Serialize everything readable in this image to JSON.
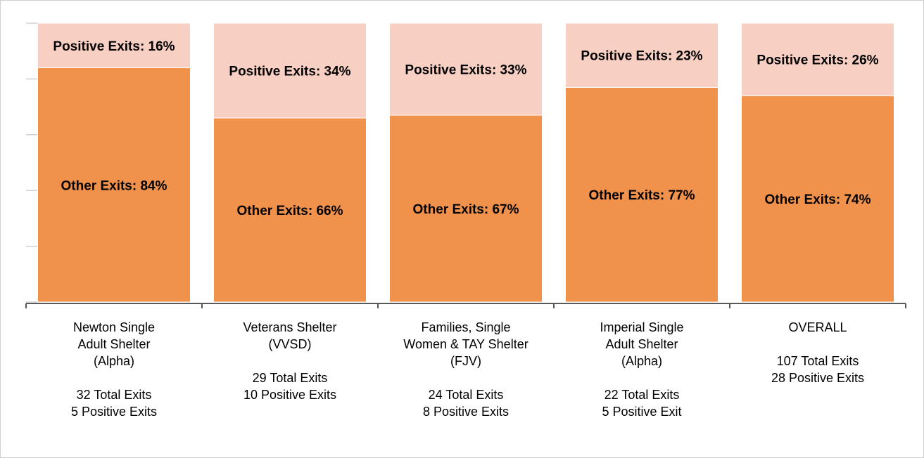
{
  "chart_data": {
    "type": "stacked_bar",
    "categories": [
      [
        "Newton Single",
        "Adult Shelter",
        "(Alpha)"
      ],
      [
        "Veterans Shelter",
        "(VVSD)"
      ],
      [
        "Families, Single",
        "Women & TAY Shelter",
        "(FJV)"
      ],
      [
        "Imperial Single",
        "Adult Shelter",
        "(Alpha)"
      ],
      [
        "OVERALL"
      ]
    ],
    "category_notes": [
      [
        "32 Total Exits",
        "5 Positive Exits"
      ],
      [
        "29 Total Exits",
        "10 Positive Exits"
      ],
      [
        "24 Total Exits",
        "8 Positive Exits"
      ],
      [
        "22 Total Exits",
        "5 Positive Exit"
      ],
      [
        "107 Total Exits",
        "28 Positive Exits"
      ]
    ],
    "series": [
      {
        "name": "Other Exits",
        "color": "#f0914c",
        "values": [
          84,
          66,
          67,
          77,
          74
        ],
        "value_labels": [
          "Other Exits: 84%",
          "Other Exits: 66%",
          "Other Exits: 67%",
          "Other Exits: 77%",
          "Other Exits: 74%"
        ]
      },
      {
        "name": "Positive Exits",
        "color": "#f8cfc3",
        "values": [
          16,
          34,
          33,
          23,
          26
        ],
        "value_labels": [
          "Positive Exits: 16%",
          "Positive Exits: 34%",
          "Positive Exits: 33%",
          "Positive Exits: 23%",
          "Positive Exits: 26%"
        ]
      }
    ],
    "ylim": [
      0,
      100
    ],
    "yticks": [
      0,
      20,
      40,
      60,
      80,
      100
    ]
  }
}
